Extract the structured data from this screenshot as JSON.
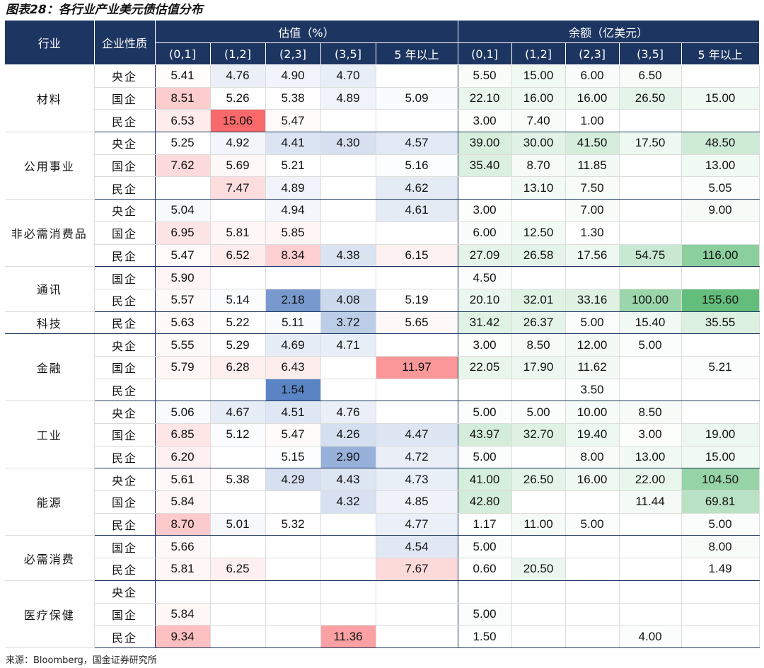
{
  "title": "图表28：各行业产业美元债估值分布",
  "source": "来源：Bloomberg，国金证券研究所",
  "header": {
    "industry": "行业",
    "type": "企业性质",
    "valuation_group": "估值（%）",
    "amount_group": "余额（亿美元）",
    "buckets": [
      "(0,1]",
      "(1,2]",
      "(2,3]",
      "(3,5]",
      "5 年以上"
    ]
  },
  "groups": [
    {
      "industry": "材料",
      "rows": [
        {
          "type": "央企",
          "val": [
            "5.41",
            "4.76",
            "4.90",
            "4.70",
            ""
          ],
          "amt": [
            "5.50",
            "15.00",
            "6.00",
            "6.50",
            ""
          ]
        },
        {
          "type": "国企",
          "val": [
            "8.51",
            "5.26",
            "5.38",
            "4.89",
            "5.09"
          ],
          "amt": [
            "22.10",
            "16.00",
            "16.00",
            "26.50",
            "15.00"
          ]
        },
        {
          "type": "民企",
          "val": [
            "6.53",
            "15.06",
            "5.47",
            "",
            ""
          ],
          "amt": [
            "3.00",
            "7.40",
            "1.00",
            "",
            ""
          ]
        }
      ]
    },
    {
      "industry": "公用事业",
      "rows": [
        {
          "type": "央企",
          "val": [
            "5.25",
            "4.92",
            "4.41",
            "4.30",
            "4.57"
          ],
          "amt": [
            "39.00",
            "30.00",
            "41.50",
            "17.50",
            "48.50"
          ]
        },
        {
          "type": "国企",
          "val": [
            "7.62",
            "5.69",
            "5.21",
            "",
            "5.16"
          ],
          "amt": [
            "35.40",
            "8.70",
            "11.85",
            "",
            "13.00"
          ]
        },
        {
          "type": "民企",
          "val": [
            "",
            "7.47",
            "4.89",
            "",
            "4.62"
          ],
          "amt": [
            "",
            "13.10",
            "7.50",
            "",
            "5.05"
          ]
        }
      ]
    },
    {
      "industry": "非必需消费品",
      "rows": [
        {
          "type": "央企",
          "val": [
            "5.04",
            "",
            "4.94",
            "",
            "4.61"
          ],
          "amt": [
            "3.00",
            "",
            "7.00",
            "",
            "9.00"
          ]
        },
        {
          "type": "国企",
          "val": [
            "6.95",
            "5.81",
            "5.85",
            "",
            ""
          ],
          "amt": [
            "6.00",
            "12.50",
            "1.30",
            "",
            ""
          ]
        },
        {
          "type": "民企",
          "val": [
            "5.47",
            "6.52",
            "8.34",
            "4.38",
            "6.15"
          ],
          "amt": [
            "27.09",
            "26.58",
            "17.56",
            "54.75",
            "116.00"
          ]
        }
      ]
    },
    {
      "industry": "通讯",
      "rows": [
        {
          "type": "国企",
          "val": [
            "5.90",
            "",
            "",
            "",
            ""
          ],
          "amt": [
            "4.50",
            "",
            "",
            "",
            ""
          ]
        },
        {
          "type": "民企",
          "val": [
            "5.57",
            "5.14",
            "2.18",
            "4.08",
            "5.19"
          ],
          "amt": [
            "20.10",
            "32.01",
            "33.16",
            "100.00",
            "155.60"
          ]
        }
      ]
    },
    {
      "industry": "科技",
      "rows": [
        {
          "type": "民企",
          "val": [
            "5.63",
            "5.22",
            "5.11",
            "3.72",
            "5.65"
          ],
          "amt": [
            "31.42",
            "26.37",
            "5.00",
            "15.40",
            "35.55"
          ]
        }
      ]
    },
    {
      "industry": "金融",
      "rows": [
        {
          "type": "央企",
          "val": [
            "5.55",
            "5.29",
            "4.69",
            "4.71",
            ""
          ],
          "amt": [
            "3.00",
            "8.50",
            "12.00",
            "5.00",
            ""
          ]
        },
        {
          "type": "国企",
          "val": [
            "5.79",
            "6.28",
            "6.43",
            "",
            "11.97"
          ],
          "amt": [
            "22.05",
            "17.90",
            "11.62",
            "",
            "5.21"
          ]
        },
        {
          "type": "民企",
          "val": [
            "",
            "",
            "1.54",
            "",
            ""
          ],
          "amt": [
            "",
            "",
            "3.50",
            "",
            ""
          ]
        }
      ]
    },
    {
      "industry": "工业",
      "rows": [
        {
          "type": "央企",
          "val": [
            "5.06",
            "4.67",
            "4.51",
            "4.76",
            ""
          ],
          "amt": [
            "5.00",
            "5.00",
            "10.00",
            "8.50",
            ""
          ]
        },
        {
          "type": "国企",
          "val": [
            "6.85",
            "5.12",
            "5.47",
            "4.26",
            "4.47"
          ],
          "amt": [
            "43.97",
            "32.70",
            "19.40",
            "3.00",
            "19.00"
          ]
        },
        {
          "type": "民企",
          "val": [
            "6.20",
            "",
            "5.15",
            "2.90",
            "4.72"
          ],
          "amt": [
            "5.00",
            "",
            "8.00",
            "13.00",
            "15.00"
          ]
        }
      ]
    },
    {
      "industry": "能源",
      "rows": [
        {
          "type": "央企",
          "val": [
            "5.61",
            "5.38",
            "4.29",
            "4.43",
            "4.73"
          ],
          "amt": [
            "41.00",
            "26.50",
            "16.00",
            "22.00",
            "104.50"
          ]
        },
        {
          "type": "国企",
          "val": [
            "5.84",
            "",
            "",
            "4.32",
            "4.85"
          ],
          "amt": [
            "42.80",
            "",
            "",
            "11.44",
            "69.81"
          ]
        },
        {
          "type": "民企",
          "val": [
            "8.70",
            "5.01",
            "5.32",
            "",
            "4.77"
          ],
          "amt": [
            "1.17",
            "11.00",
            "5.00",
            "",
            "5.00"
          ]
        }
      ]
    },
    {
      "industry": "必需消费",
      "rows": [
        {
          "type": "国企",
          "val": [
            "5.66",
            "",
            "",
            "",
            "4.54"
          ],
          "amt": [
            "5.00",
            "",
            "",
            "",
            "8.00"
          ]
        },
        {
          "type": "民企",
          "val": [
            "5.81",
            "6.25",
            "",
            "",
            "7.67"
          ],
          "amt": [
            "0.60",
            "20.50",
            "",
            "",
            "1.49"
          ]
        }
      ]
    },
    {
      "industry": "医疗保健",
      "rows": [
        {
          "type": "央企",
          "val": [
            "",
            "",
            "",
            "",
            ""
          ],
          "amt": [
            "",
            "",
            "",
            "",
            ""
          ]
        },
        {
          "type": "国企",
          "val": [
            "5.84",
            "",
            "",
            "",
            ""
          ],
          "amt": [
            "5.00",
            "",
            "",
            "",
            ""
          ]
        },
        {
          "type": "民企",
          "val": [
            "9.34",
            "",
            "",
            "11.36",
            ""
          ],
          "amt": [
            "1.50",
            "",
            "",
            "4.00",
            ""
          ]
        }
      ]
    }
  ],
  "colors": {
    "header_bg": "#1d3561",
    "header_text": "#ffffff",
    "valuation_low": "#5b84c4",
    "valuation_mid": "#ffffff",
    "valuation_high": "#f8696b",
    "amount_low": "#ffffff",
    "amount_high": "#63be7b"
  }
}
